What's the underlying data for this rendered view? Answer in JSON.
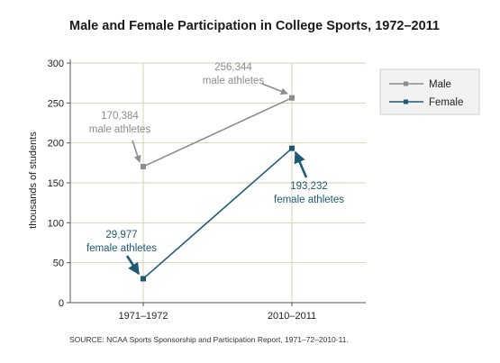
{
  "chart_data": {
    "type": "line",
    "title": "Male and Female Participation in College Sports, 1972–2011",
    "ylabel": "thousands of students",
    "xlabel": "",
    "categories": [
      "1971–1972",
      "2010–2011"
    ],
    "ylim": [
      0,
      300
    ],
    "yticks": [
      0,
      50,
      100,
      150,
      200,
      250,
      300
    ],
    "grid": true,
    "legend_position": "top-right",
    "series": [
      {
        "name": "Male",
        "values": [
          170.384,
          256.344
        ],
        "color": "#8c8c8c"
      },
      {
        "name": "Female",
        "values": [
          29.977,
          193.232
        ],
        "color": "#1f5a73"
      }
    ],
    "annotations": [
      {
        "line1": "170,384",
        "line2": "male athletes",
        "series": "Male",
        "point": 0
      },
      {
        "line1": "256,344",
        "line2": "male athletes",
        "series": "Male",
        "point": 1
      },
      {
        "line1": "29,977",
        "line2": "female athletes",
        "series": "Female",
        "point": 0
      },
      {
        "line1": "193,232",
        "line2": "female athletes",
        "series": "Female",
        "point": 1
      }
    ],
    "source": "SOURCE: NCAA Sports Sponsorship and Participation Report, 1971–72–2010-11."
  }
}
